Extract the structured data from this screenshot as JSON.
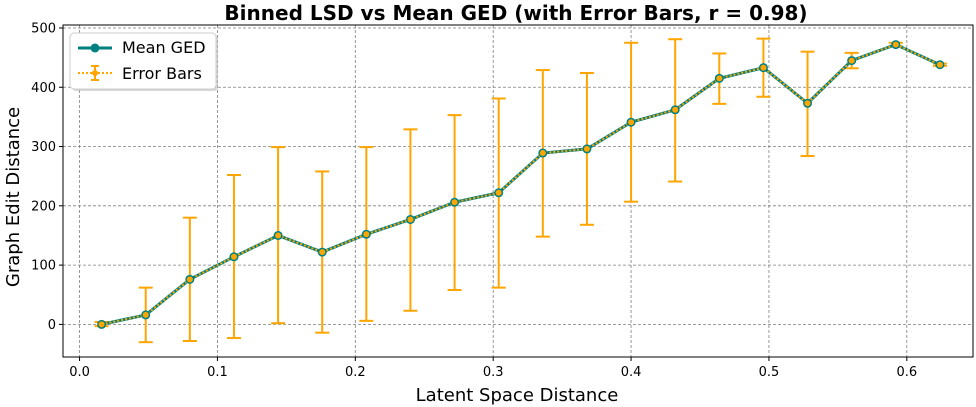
{
  "chart_data": {
    "type": "line",
    "title": "Binned LSD vs Mean GED (with Error Bars, r = 0.98)",
    "xlabel": "Latent Space Distance",
    "ylabel": "Graph Edit Distance",
    "xlim": [
      -0.012,
      0.648
    ],
    "ylim": [
      -55,
      505
    ],
    "xticks": [
      0.0,
      0.1,
      0.2,
      0.3,
      0.4,
      0.5,
      0.6
    ],
    "xtick_labels": [
      "0.0",
      "0.1",
      "0.2",
      "0.3",
      "0.4",
      "0.5",
      "0.6"
    ],
    "yticks": [
      0,
      100,
      200,
      300,
      400,
      500
    ],
    "ytick_labels": [
      "0",
      "100",
      "200",
      "300",
      "400",
      "500"
    ],
    "grid": true,
    "legend_position": "top-left",
    "x": [
      0.016,
      0.048,
      0.08,
      0.112,
      0.144,
      0.176,
      0.208,
      0.24,
      0.272,
      0.304,
      0.336,
      0.368,
      0.4,
      0.432,
      0.464,
      0.496,
      0.528,
      0.56,
      0.592,
      0.624
    ],
    "series": [
      {
        "name": "Mean GED",
        "color": "#008080",
        "values": [
          0,
          16,
          76,
          114,
          150,
          122,
          152,
          177,
          206,
          222,
          289,
          296,
          341,
          362,
          415,
          433,
          373,
          445,
          472,
          438
        ]
      },
      {
        "name": "Error Bars",
        "color": "#FFA500",
        "values": [
          0,
          16,
          76,
          114,
          150,
          122,
          152,
          177,
          206,
          222,
          289,
          296,
          341,
          362,
          415,
          433,
          373,
          445,
          472,
          438
        ],
        "lower": [
          -3,
          -30,
          -28,
          -23,
          2,
          -14,
          6,
          23,
          58,
          62,
          148,
          168,
          207,
          241,
          372,
          384,
          284,
          432,
          469,
          436
        ],
        "upper": [
          4,
          62,
          180,
          252,
          299,
          258,
          299,
          329,
          353,
          381,
          429,
          424,
          475,
          481,
          457,
          482,
          460,
          458,
          475,
          440
        ]
      }
    ]
  }
}
